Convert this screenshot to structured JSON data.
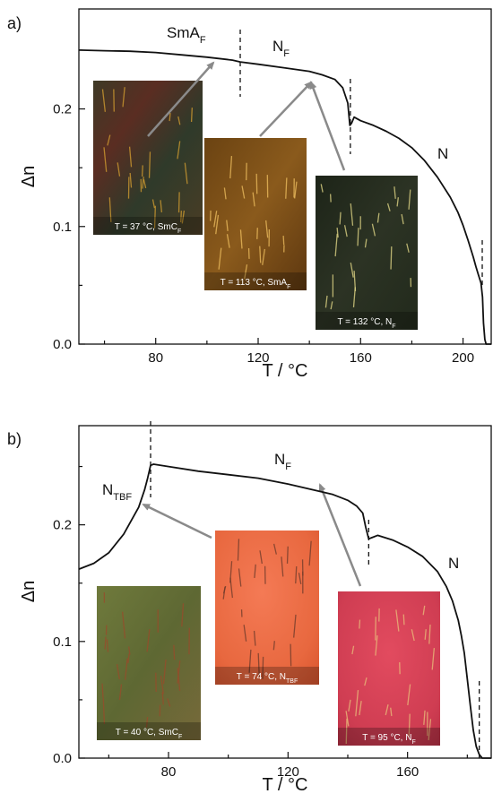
{
  "chart_data": [
    {
      "type": "line",
      "panel_label": "a)",
      "xlabel": "T / °C",
      "ylabel": "Δn",
      "xlim": [
        50,
        211
      ],
      "ylim": [
        0,
        0.285
      ],
      "xticks": [
        "80",
        "120",
        "160",
        "200"
      ],
      "yticks": [
        "0.0",
        "0.1",
        "0.2"
      ],
      "x": [
        50,
        60,
        70,
        80,
        90,
        100,
        110,
        113,
        120,
        130,
        140,
        145,
        150,
        153,
        155,
        155.8,
        156.5,
        157.5,
        160,
        165,
        170,
        175,
        180,
        185,
        190,
        195,
        198,
        200,
        202,
        204,
        205,
        206,
        207,
        207.6,
        208,
        208.5,
        209,
        211
      ],
      "values": [
        0.25,
        0.2495,
        0.249,
        0.248,
        0.246,
        0.244,
        0.2415,
        0.24,
        0.238,
        0.235,
        0.232,
        0.229,
        0.225,
        0.218,
        0.205,
        0.186,
        0.188,
        0.193,
        0.19,
        0.186,
        0.181,
        0.175,
        0.167,
        0.156,
        0.142,
        0.125,
        0.112,
        0.101,
        0.088,
        0.074,
        0.066,
        0.059,
        0.052,
        0.04,
        0.018,
        0.004,
        0.0,
        0.0
      ],
      "phase_labels": [
        {
          "main": "SmA",
          "sub": "F"
        },
        {
          "main": "N",
          "sub": "F"
        },
        {
          "main": "N",
          "sub": ""
        }
      ],
      "transitions": [
        113,
        156,
        207.5
      ],
      "insets": [
        {
          "label": "T = 37 °C, SmC",
          "sub": "F",
          "palette": "smc_dark"
        },
        {
          "label": "T = 113 °C, SmA",
          "sub": "F",
          "palette": "orange_stripes"
        },
        {
          "label": "T = 132 °C, N",
          "sub": "F",
          "palette": "dark_squares"
        }
      ]
    },
    {
      "type": "line",
      "panel_label": "b)",
      "xlabel": "T / °C",
      "ylabel": "Δn",
      "xlim": [
        50,
        188
      ],
      "ylim": [
        0,
        0.285
      ],
      "xticks": [
        "80",
        "120",
        "160"
      ],
      "yticks": [
        "0.0",
        "0.1",
        "0.2"
      ],
      "x": [
        50,
        55,
        60,
        65,
        70,
        72,
        73,
        74,
        75,
        80,
        90,
        100,
        110,
        120,
        125,
        130,
        135,
        140,
        143,
        145,
        146,
        147,
        148,
        150,
        155,
        160,
        165,
        170,
        173,
        175,
        177,
        178,
        179,
        180,
        181,
        182,
        183,
        184,
        185,
        188
      ],
      "values": [
        0.162,
        0.167,
        0.176,
        0.192,
        0.215,
        0.23,
        0.24,
        0.251,
        0.252,
        0.25,
        0.246,
        0.243,
        0.24,
        0.235,
        0.232,
        0.229,
        0.226,
        0.221,
        0.216,
        0.21,
        0.198,
        0.188,
        0.189,
        0.191,
        0.187,
        0.181,
        0.173,
        0.16,
        0.147,
        0.135,
        0.118,
        0.105,
        0.09,
        0.068,
        0.045,
        0.024,
        0.01,
        0.003,
        0.0,
        0.0
      ],
      "phase_labels": [
        {
          "main": "N",
          "sub": "TBF"
        },
        {
          "main": "N",
          "sub": "F"
        },
        {
          "main": "N",
          "sub": ""
        }
      ],
      "transitions": [
        74,
        147,
        184
      ],
      "insets": [
        {
          "label": "T = 40 °C, SmC",
          "sub": "F",
          "palette": "green_texture"
        },
        {
          "label": "T = 74 °C, N",
          "sub": "TBF",
          "palette": "orange_smooth"
        },
        {
          "label": "T = 95 °C, N",
          "sub": "F",
          "palette": "red_defects"
        }
      ]
    }
  ]
}
